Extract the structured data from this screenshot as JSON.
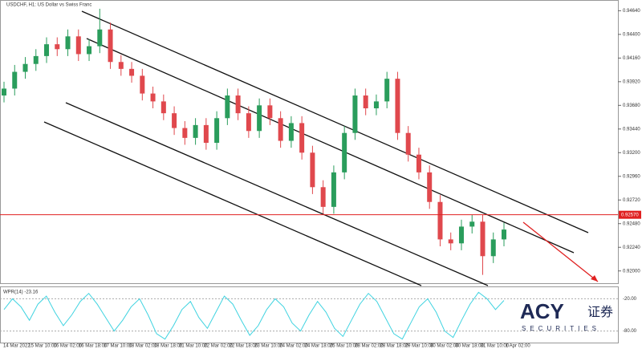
{
  "chart_data": [
    {
      "type": "candlestick",
      "title": "USDCHF, H1: US Dollar vs Swiss Franc",
      "x_labels": [
        "14 Mar 2022",
        "15 Mar 10:00",
        "16 Mar 02:00",
        "16 Mar 18:00",
        "17 Mar 10:00",
        "18 Mar 02:00",
        "18 Mar 18:00",
        "21 Mar 10:00",
        "22 Mar 02:00",
        "22 Mar 18:00",
        "23 Mar 10:00",
        "24 Mar 02:00",
        "24 Mar 18:00",
        "25 Mar 10:00",
        "28 Mar 02:00",
        "28 Mar 18:00",
        "29 Mar 10:00",
        "30 Mar 02:00",
        "30 Mar 18:00",
        "31 Mar 10:00",
        "1 Apr 02:00"
      ],
      "open": [
        0.9378,
        0.9385,
        0.9402,
        0.941,
        0.9418,
        0.943,
        0.9425,
        0.9438,
        0.942,
        0.9428,
        0.9445,
        0.9412,
        0.9405,
        0.9398,
        0.938,
        0.9372,
        0.936,
        0.9345,
        0.9335,
        0.9348,
        0.933,
        0.9355,
        0.9378,
        0.936,
        0.9342,
        0.9368,
        0.9355,
        0.9332,
        0.935,
        0.932,
        0.9285,
        0.9265,
        0.93,
        0.934,
        0.9378,
        0.9365,
        0.9372,
        0.9395,
        0.934,
        0.9318,
        0.93,
        0.927,
        0.9232,
        0.9228,
        0.9245,
        0.925,
        0.9215,
        0.9232
      ],
      "high": [
        0.9392,
        0.9409,
        0.9417,
        0.9425,
        0.9437,
        0.9437,
        0.9445,
        0.9445,
        0.9435,
        0.9466,
        0.9452,
        0.9419,
        0.9412,
        0.9405,
        0.9387,
        0.9379,
        0.9367,
        0.9352,
        0.9355,
        0.9355,
        0.9362,
        0.9385,
        0.9385,
        0.9367,
        0.9375,
        0.9375,
        0.9362,
        0.9357,
        0.9357,
        0.9327,
        0.9292,
        0.9307,
        0.9347,
        0.9385,
        0.9385,
        0.9379,
        0.9402,
        0.9402,
        0.9347,
        0.9325,
        0.9307,
        0.9277,
        0.9239,
        0.9252,
        0.9257,
        0.9257,
        0.9239,
        0.9249
      ],
      "low": [
        0.9371,
        0.9378,
        0.9395,
        0.9403,
        0.9411,
        0.9418,
        0.9418,
        0.9413,
        0.9413,
        0.9421,
        0.9405,
        0.9398,
        0.9391,
        0.9373,
        0.9365,
        0.9353,
        0.9338,
        0.9328,
        0.9328,
        0.9323,
        0.9323,
        0.9348,
        0.9353,
        0.9335,
        0.9335,
        0.9348,
        0.9325,
        0.9325,
        0.9313,
        0.9278,
        0.9258,
        0.9258,
        0.9293,
        0.9333,
        0.9358,
        0.9358,
        0.9365,
        0.9333,
        0.9311,
        0.9293,
        0.9263,
        0.9225,
        0.9221,
        0.9221,
        0.9238,
        0.9196,
        0.9208,
        0.9225
      ],
      "close": [
        0.9385,
        0.9402,
        0.941,
        0.9418,
        0.943,
        0.9425,
        0.9438,
        0.942,
        0.9428,
        0.9445,
        0.9412,
        0.9405,
        0.9398,
        0.938,
        0.9372,
        0.936,
        0.9345,
        0.9335,
        0.9348,
        0.933,
        0.9355,
        0.9378,
        0.936,
        0.9342,
        0.9368,
        0.9355,
        0.9332,
        0.935,
        0.932,
        0.9285,
        0.9265,
        0.93,
        0.934,
        0.9378,
        0.9365,
        0.9372,
        0.9395,
        0.934,
        0.9318,
        0.93,
        0.927,
        0.9232,
        0.9228,
        0.9245,
        0.925,
        0.9215,
        0.9232,
        0.9242
      ],
      "up_color": "#2a9d5c",
      "down_color": "#e0484d",
      "ylim": [
        0.919,
        0.947
      ],
      "yticks": [
        {
          "value": 0.92,
          "label": "0.92000"
        },
        {
          "value": 0.9224,
          "label": "0.92240"
        },
        {
          "value": 0.9248,
          "label": "0.92480"
        },
        {
          "value": 0.9272,
          "label": "0.92720"
        },
        {
          "value": 0.9296,
          "label": "0.92960"
        },
        {
          "value": 0.932,
          "label": "0.93200"
        },
        {
          "value": 0.9344,
          "label": "0.93440"
        },
        {
          "value": 0.9368,
          "label": "0.93680"
        },
        {
          "value": 0.9392,
          "label": "0.93920"
        },
        {
          "value": 0.9416,
          "label": "0.94160"
        },
        {
          "value": 0.944,
          "label": "0.94400"
        },
        {
          "value": 0.9464,
          "label": "0.94640"
        }
      ],
      "hline": {
        "value": 0.9257,
        "label": "0.92570",
        "color": "#e02020"
      }
    },
    {
      "type": "line",
      "title": "WPR(14) -23.16",
      "color": "#3fd3e0",
      "values": [
        -40,
        -20,
        -35,
        -60,
        -30,
        -15,
        -45,
        -70,
        -50,
        -25,
        -10,
        -30,
        -55,
        -80,
        -60,
        -35,
        -20,
        -50,
        -85,
        -95,
        -70,
        -40,
        -25,
        -55,
        -75,
        -45,
        -15,
        -30,
        -60,
        -88,
        -70,
        -40,
        -20,
        -35,
        -65,
        -80,
        -50,
        -25,
        -45,
        -75,
        -90,
        -60,
        -30,
        -10,
        -25,
        -55,
        -85,
        -95,
        -65,
        -35,
        -20,
        -45,
        -80,
        -92,
        -60,
        -30,
        -8,
        -20,
        -40,
        -23.16
      ],
      "ylim": [
        -100,
        0
      ],
      "yticks": [
        {
          "value": -20,
          "label": "-20.00"
        },
        {
          "value": -80,
          "label": "-80.00"
        }
      ]
    },
    {
      "type": "logo",
      "brand": "ACY",
      "cn": "证券",
      "sub": "SECURITIES"
    }
  ]
}
